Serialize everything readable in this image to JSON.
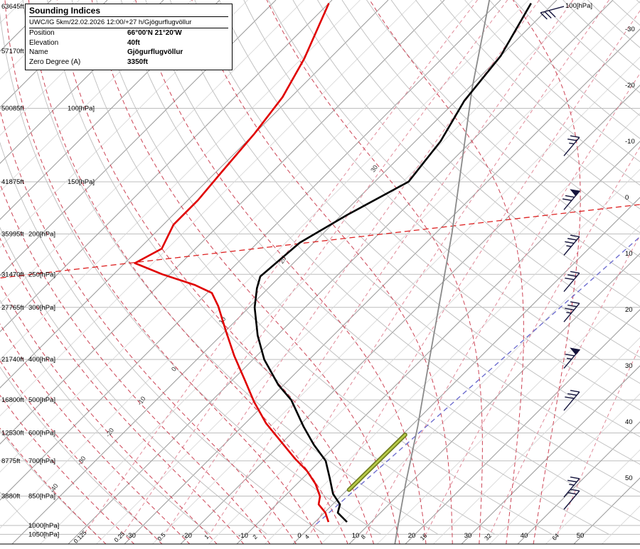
{
  "title_box": {
    "title": "Sounding Indices",
    "subtitle": "UWC/IG 5km/22.02.2026 12:00/+27 h/Gjögurflugvöllur",
    "rows": [
      {
        "label": "Position",
        "value": "66°00'N 21°20'W"
      },
      {
        "label": "Elevation",
        "value": "40ft"
      },
      {
        "label": "Name",
        "value": "Gjögurflugvöllur"
      },
      {
        "label": "Zero Degree (A)",
        "value": "3350ft"
      }
    ]
  },
  "chart_data": {
    "type": "line",
    "diagram": "skew-t log-p sounding",
    "colors": {
      "temperature": "#000000",
      "dewpoint": "#e00000",
      "grid": "#bdbdbd",
      "isotherm_major": "#9a9a9a",
      "isotherm_minor": "#d6d6d6",
      "dry_adiabat": "#bdbdbd",
      "moist_adiabat": "#cc4455",
      "mixing_ratio": "#e08a99",
      "reference": "#8a8a8a",
      "parcel_blue": "#6666cc",
      "special_red": "#dd2222",
      "green_dark": "#6f7d20",
      "green_light": "#b9cc48",
      "barb": "#14143c"
    },
    "levels": [
      {
        "p": 57,
        "altitude_label": "63645ft",
        "pressure_label": null
      },
      {
        "p": 73,
        "altitude_label": "57170ft",
        "pressure_label": null
      },
      {
        "p": 100,
        "altitude_label": "50085ft",
        "pressure_label": "100[hPa]"
      },
      {
        "p": 150,
        "altitude_label": "41875ft",
        "pressure_label": "150[hPa]"
      },
      {
        "p": 200,
        "altitude_label": "35995ft",
        "pressure_label": "200[hPa]"
      },
      {
        "p": 250,
        "altitude_label": "31470ft",
        "pressure_label": "250[hPa]"
      },
      {
        "p": 300,
        "altitude_label": "27765ft",
        "pressure_label": "300[hPa]"
      },
      {
        "p": 400,
        "altitude_label": "21740ft",
        "pressure_label": "400[hPa]"
      },
      {
        "p": 500,
        "altitude_label": "16800ft",
        "pressure_label": "500[hPa]"
      },
      {
        "p": 600,
        "altitude_label": "12530ft",
        "pressure_label": "600[hPa]"
      },
      {
        "p": 700,
        "altitude_label": "8775ft",
        "pressure_label": "700[hPa]"
      },
      {
        "p": 850,
        "altitude_label": "3880ft",
        "pressure_label": "850[hPa]"
      },
      {
        "p": 1000,
        "altitude_label": null,
        "pressure_label": "1000[hPa]"
      },
      {
        "p": 1050,
        "altitude_label": null,
        "pressure_label": "1050[hPa]"
      }
    ],
    "isotherm_labels_c": [
      -30,
      -20,
      -10,
      0,
      10,
      20,
      30,
      40,
      50
    ],
    "isotherm_minor_step_c": 5,
    "dry_adiabat_theta_c": {
      "min": -60,
      "max": 270,
      "step": 10
    },
    "moist_adiabat_thetaw_c": {
      "min": -40,
      "max": 40,
      "step": 5,
      "labels": [
        -40,
        -30,
        -20,
        -10,
        0,
        10,
        20,
        30
      ]
    },
    "mixing_ratio_g_per_kg": [
      0.125,
      0.25,
      0.5,
      1,
      2,
      4,
      8,
      16,
      32,
      64
    ],
    "top_right_pressure_label": "100[hPa]",
    "temperature_profile_p_c": [
      [
        56,
        -54
      ],
      [
        75,
        -50
      ],
      [
        96,
        -48.5
      ],
      [
        120,
        -45.5
      ],
      [
        150,
        -44
      ],
      [
        180,
        -49
      ],
      [
        210,
        -52.5
      ],
      [
        253,
        -53.5
      ],
      [
        270,
        -52
      ],
      [
        300,
        -49
      ],
      [
        350,
        -43.5
      ],
      [
        400,
        -38
      ],
      [
        460,
        -31
      ],
      [
        500,
        -26
      ],
      [
        580,
        -19
      ],
      [
        640,
        -14
      ],
      [
        700,
        -9
      ],
      [
        770,
        -5.2
      ],
      [
        840,
        -1.8
      ],
      [
        890,
        1.3
      ],
      [
        932,
        2.4
      ],
      [
        981,
        5.7
      ]
    ],
    "dewpoint_profile_p_c": [
      [
        56,
        -90
      ],
      [
        76,
        -84.5
      ],
      [
        94,
        -81.5
      ],
      [
        115,
        -80
      ],
      [
        142,
        -79
      ],
      [
        166,
        -78.2
      ],
      [
        190,
        -78.2
      ],
      [
        217,
        -76
      ],
      [
        235,
        -78.2
      ],
      [
        250,
        -71.3
      ],
      [
        265,
        -63.7
      ],
      [
        277,
        -59.2
      ],
      [
        298,
        -55.7
      ],
      [
        341,
        -50
      ],
      [
        392,
        -44
      ],
      [
        449,
        -37.7
      ],
      [
        505,
        -32.3
      ],
      [
        569,
        -26.3
      ],
      [
        627,
        -20.6
      ],
      [
        691,
        -14.9
      ],
      [
        739,
        -10.6
      ],
      [
        795,
        -6.7
      ],
      [
        851,
        -3.7
      ],
      [
        890,
        -2.5
      ],
      [
        932,
        0.2
      ],
      [
        981,
        2.4
      ]
    ],
    "reference_profile_p_c": [
      [
        55,
        -62
      ],
      [
        89,
        -49.5
      ],
      [
        136,
        -37.7
      ],
      [
        200,
        -27
      ],
      [
        297,
        -16.5
      ],
      [
        425,
        -7
      ],
      [
        580,
        1.3
      ],
      [
        797,
        9.4
      ],
      [
        1000,
        15.4
      ],
      [
        1110,
        18.2
      ]
    ],
    "parcel_guides": {
      "blue_dashed_p_c": [
        [
          993,
          0.6
        ],
        [
          203,
          7.0
        ]
      ],
      "red_dashed_p_c": [
        [
          255,
          -99.5
        ],
        [
          170,
          1.3
        ]
      ],
      "green_segment_p_c": [
        [
          821,
          0.3
        ],
        [
          606,
          0.5
        ]
      ]
    },
    "wind_barbs": [
      {
        "p": 57,
        "dir": 195,
        "flag": 0,
        "full": 3,
        "half": 0
      },
      {
        "p": 130,
        "dir": 50,
        "flag": 0,
        "full": 2,
        "half": 1
      },
      {
        "p": 175,
        "dir": 50,
        "flag": 1,
        "full": 2,
        "half": 0
      },
      {
        "p": 225,
        "dir": 50,
        "flag": 0,
        "full": 3,
        "half": 1
      },
      {
        "p": 275,
        "dir": 50,
        "flag": 0,
        "full": 3,
        "half": 0
      },
      {
        "p": 325,
        "dir": 50,
        "flag": 0,
        "full": 3,
        "half": 1
      },
      {
        "p": 420,
        "dir": 50,
        "flag": 1,
        "full": 1,
        "half": 1
      },
      {
        "p": 530,
        "dir": 50,
        "flag": 0,
        "full": 3,
        "half": 0
      },
      {
        "p": 855,
        "dir": 50,
        "flag": 0,
        "full": 2,
        "half": 1
      },
      {
        "p": 915,
        "dir": 50,
        "flag": 0,
        "full": 2,
        "half": 0
      }
    ]
  }
}
